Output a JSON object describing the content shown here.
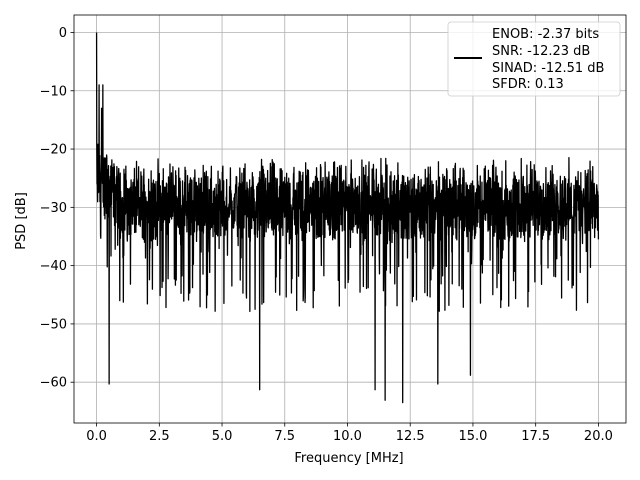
{
  "chart_data": {
    "type": "line",
    "xlabel": "Frequency [MHz]",
    "ylabel": "PSD [dB]",
    "xlim": [
      -0.9,
      21.1
    ],
    "ylim": [
      -67,
      3
    ],
    "xticks": [
      0.0,
      2.5,
      5.0,
      7.5,
      10.0,
      12.5,
      15.0,
      17.5,
      20.0
    ],
    "xtick_labels": [
      "0.0",
      "2.5",
      "5.0",
      "7.5",
      "10.0",
      "12.5",
      "15.0",
      "17.5",
      "20.0"
    ],
    "yticks": [
      0,
      -10,
      -20,
      -30,
      -40,
      -50,
      -60
    ],
    "ytick_labels": [
      "0",
      "−10",
      "−20",
      "−30",
      "−40",
      "−50",
      "−60"
    ],
    "grid": true,
    "legend_position": "top-right",
    "legend_lines": [
      "ENOB: -2.37 bits",
      "SNR: -12.23 dB",
      "SINAD: -12.51 dB",
      "SFDR: 0.13"
    ],
    "line_color": "#000000",
    "series": [
      {
        "x_range": [
          0.0,
          20.0
        ],
        "y_typical_range": [
          -36,
          -21
        ],
        "y_peak": 0,
        "notable_points": [
          {
            "x": 0.0,
            "y": 0
          },
          {
            "x": 0.02,
            "y": -26
          },
          {
            "x": 0.1,
            "y": -9
          },
          {
            "x": 0.2,
            "y": -13
          },
          {
            "x": 0.25,
            "y": -9
          },
          {
            "x": 0.5,
            "y": -60.3
          },
          {
            "x": 6.5,
            "y": -61.3
          },
          {
            "x": 11.1,
            "y": -61.3
          },
          {
            "x": 11.5,
            "y": -63.1
          },
          {
            "x": 12.2,
            "y": -63.5
          },
          {
            "x": 13.6,
            "y": -60.3
          },
          {
            "x": 14.9,
            "y": -58.8
          },
          {
            "x": 20.0,
            "y": -35.5
          }
        ]
      }
    ]
  }
}
